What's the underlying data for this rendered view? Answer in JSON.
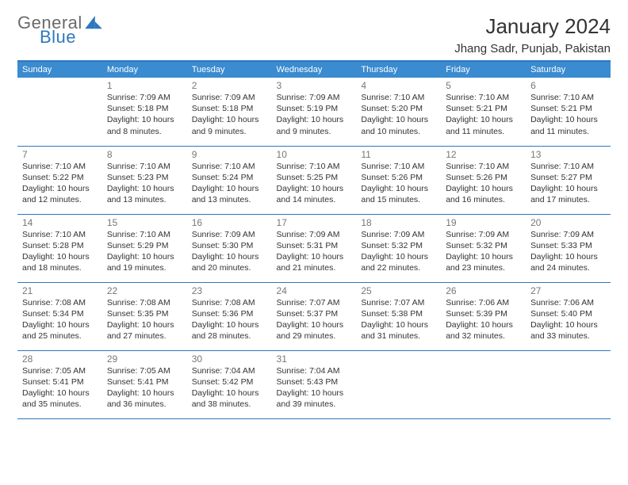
{
  "brand": {
    "text1": "General",
    "text2": "Blue",
    "color1": "#6a6a6a",
    "color2": "#2e78bd"
  },
  "title": "January 2024",
  "location": "Jhang Sadr, Punjab, Pakistan",
  "colors": {
    "header_bg": "#3a8bd0",
    "header_text": "#ffffff",
    "border": "#2e78bd",
    "daynum": "#777777",
    "body_text": "#333333",
    "page_bg": "#ffffff"
  },
  "weekdays": [
    "Sunday",
    "Monday",
    "Tuesday",
    "Wednesday",
    "Thursday",
    "Friday",
    "Saturday"
  ],
  "start_offset": 1,
  "days": [
    {
      "n": 1,
      "sr": "7:09 AM",
      "ss": "5:18 PM",
      "dl": "10 hours and 8 minutes."
    },
    {
      "n": 2,
      "sr": "7:09 AM",
      "ss": "5:18 PM",
      "dl": "10 hours and 9 minutes."
    },
    {
      "n": 3,
      "sr": "7:09 AM",
      "ss": "5:19 PM",
      "dl": "10 hours and 9 minutes."
    },
    {
      "n": 4,
      "sr": "7:10 AM",
      "ss": "5:20 PM",
      "dl": "10 hours and 10 minutes."
    },
    {
      "n": 5,
      "sr": "7:10 AM",
      "ss": "5:21 PM",
      "dl": "10 hours and 11 minutes."
    },
    {
      "n": 6,
      "sr": "7:10 AM",
      "ss": "5:21 PM",
      "dl": "10 hours and 11 minutes."
    },
    {
      "n": 7,
      "sr": "7:10 AM",
      "ss": "5:22 PM",
      "dl": "10 hours and 12 minutes."
    },
    {
      "n": 8,
      "sr": "7:10 AM",
      "ss": "5:23 PM",
      "dl": "10 hours and 13 minutes."
    },
    {
      "n": 9,
      "sr": "7:10 AM",
      "ss": "5:24 PM",
      "dl": "10 hours and 13 minutes."
    },
    {
      "n": 10,
      "sr": "7:10 AM",
      "ss": "5:25 PM",
      "dl": "10 hours and 14 minutes."
    },
    {
      "n": 11,
      "sr": "7:10 AM",
      "ss": "5:26 PM",
      "dl": "10 hours and 15 minutes."
    },
    {
      "n": 12,
      "sr": "7:10 AM",
      "ss": "5:26 PM",
      "dl": "10 hours and 16 minutes."
    },
    {
      "n": 13,
      "sr": "7:10 AM",
      "ss": "5:27 PM",
      "dl": "10 hours and 17 minutes."
    },
    {
      "n": 14,
      "sr": "7:10 AM",
      "ss": "5:28 PM",
      "dl": "10 hours and 18 minutes."
    },
    {
      "n": 15,
      "sr": "7:10 AM",
      "ss": "5:29 PM",
      "dl": "10 hours and 19 minutes."
    },
    {
      "n": 16,
      "sr": "7:09 AM",
      "ss": "5:30 PM",
      "dl": "10 hours and 20 minutes."
    },
    {
      "n": 17,
      "sr": "7:09 AM",
      "ss": "5:31 PM",
      "dl": "10 hours and 21 minutes."
    },
    {
      "n": 18,
      "sr": "7:09 AM",
      "ss": "5:32 PM",
      "dl": "10 hours and 22 minutes."
    },
    {
      "n": 19,
      "sr": "7:09 AM",
      "ss": "5:32 PM",
      "dl": "10 hours and 23 minutes."
    },
    {
      "n": 20,
      "sr": "7:09 AM",
      "ss": "5:33 PM",
      "dl": "10 hours and 24 minutes."
    },
    {
      "n": 21,
      "sr": "7:08 AM",
      "ss": "5:34 PM",
      "dl": "10 hours and 25 minutes."
    },
    {
      "n": 22,
      "sr": "7:08 AM",
      "ss": "5:35 PM",
      "dl": "10 hours and 27 minutes."
    },
    {
      "n": 23,
      "sr": "7:08 AM",
      "ss": "5:36 PM",
      "dl": "10 hours and 28 minutes."
    },
    {
      "n": 24,
      "sr": "7:07 AM",
      "ss": "5:37 PM",
      "dl": "10 hours and 29 minutes."
    },
    {
      "n": 25,
      "sr": "7:07 AM",
      "ss": "5:38 PM",
      "dl": "10 hours and 31 minutes."
    },
    {
      "n": 26,
      "sr": "7:06 AM",
      "ss": "5:39 PM",
      "dl": "10 hours and 32 minutes."
    },
    {
      "n": 27,
      "sr": "7:06 AM",
      "ss": "5:40 PM",
      "dl": "10 hours and 33 minutes."
    },
    {
      "n": 28,
      "sr": "7:05 AM",
      "ss": "5:41 PM",
      "dl": "10 hours and 35 minutes."
    },
    {
      "n": 29,
      "sr": "7:05 AM",
      "ss": "5:41 PM",
      "dl": "10 hours and 36 minutes."
    },
    {
      "n": 30,
      "sr": "7:04 AM",
      "ss": "5:42 PM",
      "dl": "10 hours and 38 minutes."
    },
    {
      "n": 31,
      "sr": "7:04 AM",
      "ss": "5:43 PM",
      "dl": "10 hours and 39 minutes."
    }
  ],
  "labels": {
    "sunrise": "Sunrise:",
    "sunset": "Sunset:",
    "daylight": "Daylight:"
  }
}
